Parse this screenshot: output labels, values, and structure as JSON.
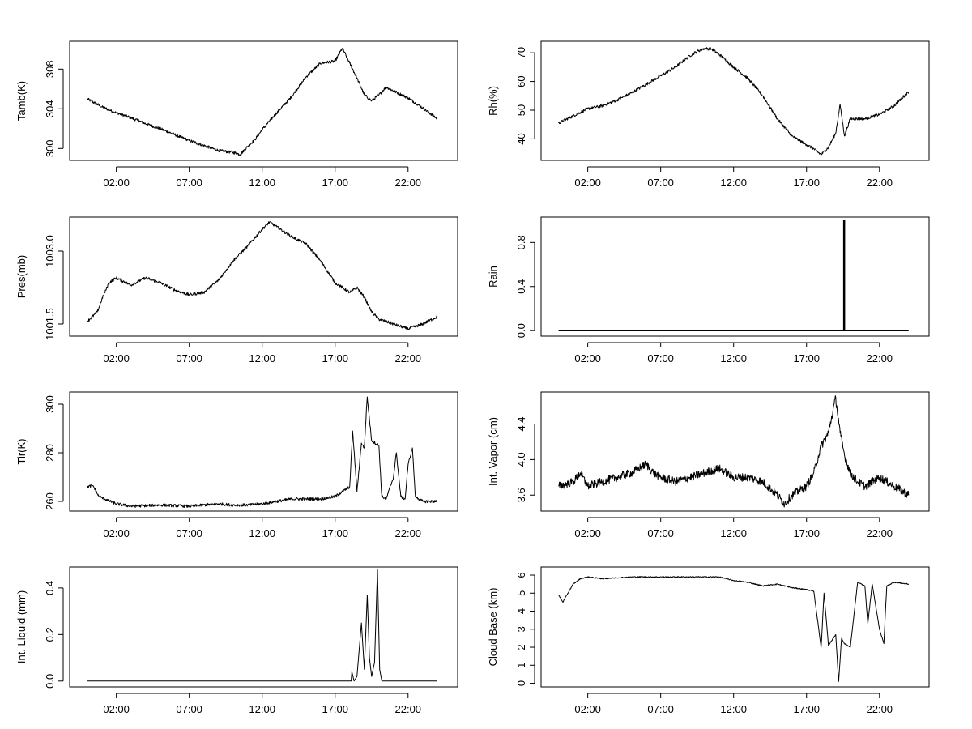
{
  "chart_data": [
    {
      "type": "line",
      "id": "tamb",
      "ylabel": "Tamb(K)",
      "xlabel": "",
      "xticks": [
        "02:00",
        "07:00",
        "12:00",
        "17:00",
        "22:00"
      ],
      "xtick_hours": [
        2,
        7,
        12,
        17,
        22
      ],
      "xlim": [
        -1.2,
        25.4
      ],
      "yticks": [
        300,
        304,
        308
      ],
      "ytick_labels": [
        "300",
        "304",
        "308"
      ],
      "ylim": [
        298.8,
        310.8
      ],
      "series": [
        {
          "name": "Tamb",
          "x": [
            0,
            1,
            2,
            3,
            4,
            5,
            6,
            7,
            8,
            9,
            10,
            10.5,
            11,
            11.5,
            12,
            13,
            14,
            15,
            16,
            17,
            17.5,
            18,
            18.5,
            19,
            19.5,
            20,
            20.5,
            21,
            22,
            23,
            24
          ],
          "y": [
            305,
            304.2,
            303.6,
            303.1,
            302.5,
            302,
            301.4,
            300.8,
            300.3,
            299.8,
            299.6,
            299.4,
            300.2,
            300.9,
            301.9,
            303.6,
            305.2,
            307.2,
            308.6,
            308.8,
            310.1,
            308.6,
            307.1,
            305.4,
            304.8,
            305.4,
            306.2,
            305.8,
            305.1,
            304.1,
            303
          ]
        }
      ]
    },
    {
      "type": "line",
      "id": "rh",
      "ylabel": "Rh(%)",
      "xlabel": "",
      "xticks": [
        "02:00",
        "07:00",
        "12:00",
        "17:00",
        "22:00"
      ],
      "xtick_hours": [
        2,
        7,
        12,
        17,
        22
      ],
      "xlim": [
        -1.2,
        25.4
      ],
      "yticks": [
        40,
        50,
        60,
        70
      ],
      "ytick_labels": [
        "40",
        "50",
        "60",
        "70"
      ],
      "ylim": [
        32.5,
        74
      ],
      "series": [
        {
          "name": "Rh",
          "x": [
            0,
            1,
            2,
            3,
            4,
            5,
            6,
            7,
            8,
            9,
            9.5,
            10,
            10.5,
            11,
            12,
            13,
            14,
            15,
            16,
            17,
            17.5,
            18,
            18.5,
            19,
            19.3,
            19.6,
            20,
            21,
            22,
            23,
            24
          ],
          "y": [
            45.5,
            48,
            50.5,
            51.5,
            53.5,
            56,
            59,
            62,
            65,
            69,
            70.5,
            71.5,
            71.3,
            69.5,
            65,
            61,
            55,
            47,
            41,
            38,
            36.5,
            34.5,
            37,
            42,
            52,
            41,
            47,
            47,
            48.5,
            51.5,
            56.5
          ]
        }
      ]
    },
    {
      "type": "line",
      "id": "pres",
      "ylabel": "Pres(mb)",
      "xlabel": "",
      "xticks": [
        "02:00",
        "07:00",
        "12:00",
        "17:00",
        "22:00"
      ],
      "xtick_hours": [
        2,
        7,
        12,
        17,
        22
      ],
      "xlim": [
        -1.2,
        25.4
      ],
      "yticks": [
        1001.5,
        1003.0
      ],
      "ytick_labels": [
        "1001.5",
        "1003.0"
      ],
      "ylim": [
        1001.25,
        1003.7
      ],
      "series": [
        {
          "name": "Pres",
          "x": [
            0,
            0.7,
            1,
            1.5,
            2,
            3,
            4,
            5,
            6,
            7,
            8,
            9,
            10,
            11,
            12,
            12.5,
            13,
            14,
            15,
            16,
            17,
            18,
            18.5,
            19,
            19.5,
            20,
            21,
            22,
            23,
            24
          ],
          "y": [
            1001.55,
            1001.75,
            1002.0,
            1002.35,
            1002.45,
            1002.3,
            1002.45,
            1002.35,
            1002.2,
            1002.1,
            1002.15,
            1002.4,
            1002.8,
            1003.1,
            1003.45,
            1003.6,
            1003.5,
            1003.3,
            1003.15,
            1002.8,
            1002.35,
            1002.15,
            1002.25,
            1002.05,
            1001.75,
            1001.6,
            1001.5,
            1001.4,
            1001.5,
            1001.65
          ]
        }
      ]
    },
    {
      "type": "line",
      "id": "rain",
      "ylabel": "Rain",
      "xlabel": "",
      "xticks": [
        "02:00",
        "07:00",
        "12:00",
        "17:00",
        "22:00"
      ],
      "xtick_hours": [
        2,
        7,
        12,
        17,
        22
      ],
      "xlim": [
        -1.2,
        25.4
      ],
      "yticks": [
        0.0,
        0.4,
        0.8
      ],
      "ytick_labels": [
        "0.0",
        "0.4",
        "0.8"
      ],
      "ylim": [
        -0.05,
        1.03
      ],
      "series": [
        {
          "name": "Rain",
          "x": [
            0,
            19.55,
            19.55,
            19.6,
            19.6,
            24
          ],
          "y": [
            0,
            0,
            1.0,
            1.0,
            0,
            0
          ]
        }
      ]
    },
    {
      "type": "line",
      "id": "tir",
      "ylabel": "Tir(K)",
      "xlabel": "",
      "xticks": [
        "02:00",
        "07:00",
        "12:00",
        "17:00",
        "22:00"
      ],
      "xtick_hours": [
        2,
        7,
        12,
        17,
        22
      ],
      "xlim": [
        -1.2,
        25.4
      ],
      "yticks": [
        260,
        280,
        300
      ],
      "ytick_labels": [
        "260",
        "280",
        "300"
      ],
      "ylim": [
        256,
        305
      ],
      "series": [
        {
          "name": "Tir",
          "x": [
            0,
            0.4,
            0.8,
            1.2,
            2,
            3,
            5,
            7,
            8,
            9,
            10,
            11,
            12,
            13,
            14,
            15,
            16,
            17,
            17.5,
            18,
            18.2,
            18.5,
            18.8,
            19,
            19.2,
            19.5,
            20,
            20.2,
            20.5,
            21,
            21.2,
            21.5,
            21.8,
            22,
            22.3,
            22.5,
            23,
            24
          ],
          "y": [
            266,
            266.5,
            262,
            261,
            259,
            258,
            258.5,
            258,
            258.5,
            259,
            258.5,
            258.5,
            259,
            260,
            261,
            261,
            261,
            262,
            264,
            266,
            289,
            264,
            284,
            282,
            303,
            285,
            283,
            262,
            261,
            270,
            280,
            262,
            261,
            275,
            282,
            262,
            260,
            260
          ]
        }
      ]
    },
    {
      "type": "line",
      "id": "vapor",
      "ylabel": "Int. Vapor (cm)",
      "xlabel": "",
      "xticks": [
        "02:00",
        "07:00",
        "12:00",
        "17:00",
        "22:00"
      ],
      "xtick_hours": [
        2,
        7,
        12,
        17,
        22
      ],
      "xlim": [
        -1.2,
        25.4
      ],
      "yticks": [
        3.6,
        4.0,
        4.4
      ],
      "ytick_labels": [
        "3.6",
        "4.0",
        "4.4"
      ],
      "ylim": [
        3.42,
        4.76
      ],
      "series": [
        {
          "name": "Int. Vapor",
          "x": [
            0,
            1,
            1.5,
            2,
            3,
            4,
            5,
            6,
            6.5,
            7,
            8,
            9,
            10,
            11,
            12,
            13,
            14,
            15,
            15.5,
            16,
            17,
            17.5,
            18,
            18.5,
            19,
            19.3,
            19.6,
            20,
            20.5,
            21,
            22,
            23,
            24
          ],
          "y": [
            3.7,
            3.75,
            3.85,
            3.7,
            3.75,
            3.8,
            3.85,
            3.95,
            3.85,
            3.8,
            3.75,
            3.8,
            3.85,
            3.9,
            3.8,
            3.8,
            3.75,
            3.6,
            3.5,
            3.6,
            3.7,
            3.85,
            4.15,
            4.3,
            4.7,
            4.3,
            4.05,
            3.85,
            3.75,
            3.7,
            3.8,
            3.7,
            3.6
          ]
        }
      ]
    },
    {
      "type": "line",
      "id": "liquid",
      "ylabel": "Int. Liquid (mm)",
      "xlabel": "",
      "xticks": [
        "02:00",
        "07:00",
        "12:00",
        "17:00",
        "22:00"
      ],
      "xtick_hours": [
        2,
        7,
        12,
        17,
        22
      ],
      "xlim": [
        -1.2,
        25.4
      ],
      "yticks": [
        0.0,
        0.2,
        0.4
      ],
      "ytick_labels": [
        "0.0",
        "0.2",
        "0.4"
      ],
      "ylim": [
        -0.025,
        0.49
      ],
      "series": [
        {
          "name": "Int. Liquid",
          "x": [
            0,
            17.8,
            18.1,
            18.15,
            18.3,
            18.5,
            18.8,
            19,
            19.2,
            19.35,
            19.5,
            19.7,
            19.9,
            20.05,
            20.2,
            20.4,
            24
          ],
          "y": [
            0,
            0,
            0,
            0.04,
            0,
            0.02,
            0.25,
            0.05,
            0.37,
            0.1,
            0.02,
            0.08,
            0.48,
            0.05,
            0,
            0,
            0
          ]
        }
      ]
    },
    {
      "type": "line",
      "id": "cloud",
      "ylabel": "Cloud Base (km)",
      "xlabel": "",
      "xticks": [
        "02:00",
        "07:00",
        "12:00",
        "17:00",
        "22:00"
      ],
      "xtick_hours": [
        2,
        7,
        12,
        17,
        22
      ],
      "xlim": [
        -1.2,
        25.4
      ],
      "yticks": [
        0,
        1,
        2,
        3,
        4,
        5,
        6
      ],
      "ytick_labels": [
        "0",
        "1",
        "2",
        "3",
        "4",
        "5",
        "6"
      ],
      "ylim": [
        -0.2,
        6.45
      ],
      "series": [
        {
          "name": "Cloud Base",
          "x": [
            0,
            0.3,
            0.5,
            1,
            1.5,
            2,
            3,
            5,
            7,
            9,
            11,
            12,
            13,
            14,
            15,
            16,
            17,
            17.5,
            18,
            18.2,
            18.5,
            19,
            19.2,
            19.4,
            19.6,
            20,
            20.5,
            21,
            21.2,
            21.5,
            22,
            22.3,
            22.5,
            23,
            24
          ],
          "y": [
            4.9,
            4.5,
            4.8,
            5.5,
            5.8,
            5.9,
            5.8,
            5.9,
            5.9,
            5.9,
            5.9,
            5.7,
            5.6,
            5.4,
            5.5,
            5.3,
            5.2,
            5.1,
            2.0,
            5.0,
            2.1,
            2.7,
            0.1,
            2.5,
            2.2,
            2.0,
            5.6,
            5.4,
            3.3,
            5.5,
            3.0,
            2.2,
            5.4,
            5.6,
            5.5
          ]
        }
      ]
    }
  ]
}
